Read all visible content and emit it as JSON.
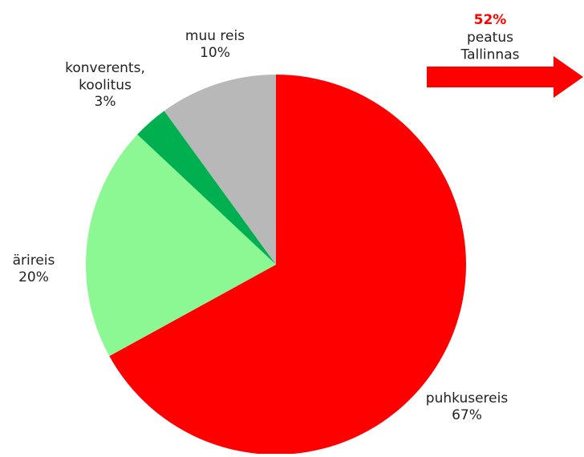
{
  "chart_data": {
    "type": "pie",
    "categories": [
      "puhkusereis",
      "ärireis",
      "konverents, koolitus",
      "muu reis"
    ],
    "values": [
      67,
      20,
      3,
      10
    ],
    "value_labels": [
      "67%",
      "20%",
      "3%",
      "10%"
    ],
    "colors": [
      "#ff0000",
      "#8cf894",
      "#00b050",
      "#b8b8b8"
    ],
    "annotation": {
      "label": "52%",
      "text": "peatus Tallinnas",
      "color": "#ff0000"
    }
  }
}
